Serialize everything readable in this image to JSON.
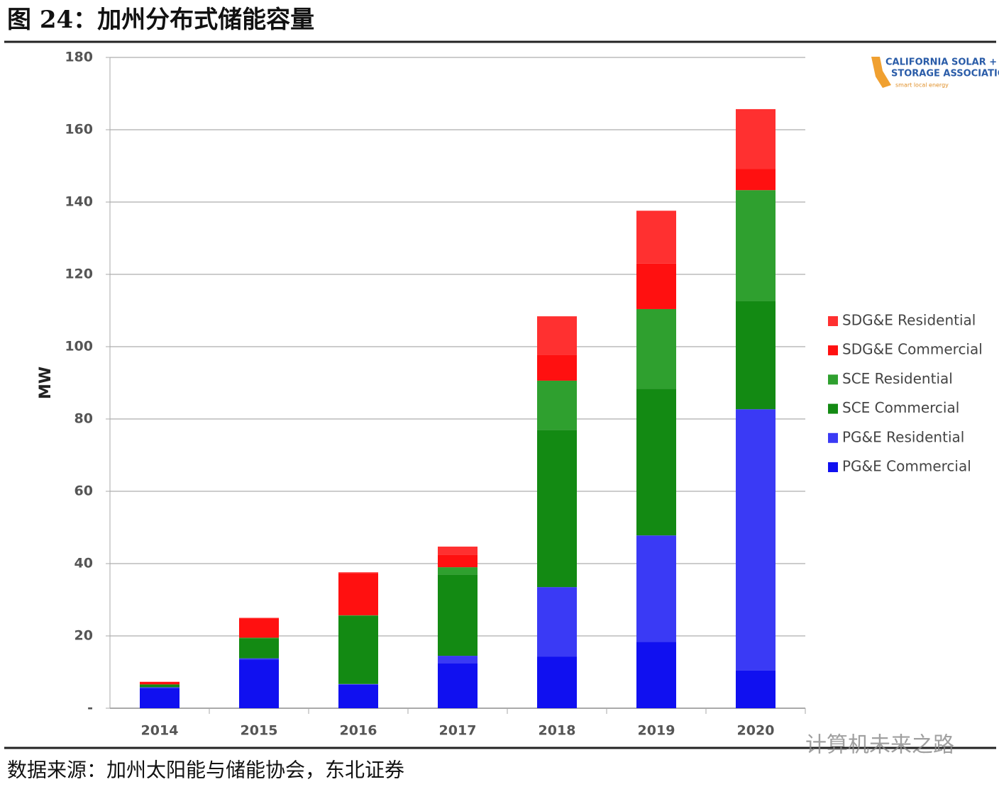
{
  "chart_data": {
    "type": "stacked_bar",
    "title": "图 24：加州分布式储能容量",
    "source": "数据来源：加州太阳能与储能协会，东北证券",
    "watermark": "计算机未来之路",
    "logo": {
      "line1": "CALIFORNIA SOLAR +",
      "line2": "STORAGE ASSOCIATION",
      "tagline": "smart local energy"
    },
    "y_label": "MW",
    "categories": [
      "2014",
      "2015",
      "2016",
      "2017",
      "2018",
      "2019",
      "2020"
    ],
    "series": [
      {
        "name": "PG&E Commercial",
        "color": "#1010f0",
        "values": [
          5.5,
          13.5,
          6.5,
          12.5,
          14.3,
          18.4,
          10.4
        ]
      },
      {
        "name": "PG&E Residential",
        "color": "#3a3af5",
        "values": [
          0.3,
          0.3,
          0.2,
          2,
          19.2,
          29.4,
          72.3
        ]
      },
      {
        "name": "SCE Commercial",
        "color": "#138a13",
        "values": [
          0.8,
          5.5,
          18.8,
          22.5,
          43.5,
          40.6,
          30
        ]
      },
      {
        "name": "SCE Residential",
        "color": "#2fa02f",
        "values": [
          0,
          0.2,
          0.2,
          2,
          13.6,
          22,
          30.6
        ]
      },
      {
        "name": "SDG&E Commercial",
        "color": "#ff1010",
        "values": [
          0.7,
          5.3,
          11.7,
          3.5,
          7.2,
          12.6,
          5.9
        ]
      },
      {
        "name": "SDG&E Residential",
        "color": "#ff3030",
        "values": [
          0,
          0.2,
          0.2,
          2.2,
          10.6,
          14.6,
          16.5
        ]
      }
    ],
    "ylim": [
      0,
      180
    ],
    "yticks": [
      {
        "value": 0,
        "label": "-"
      },
      20,
      40,
      60,
      80,
      100,
      120,
      140,
      160,
      180
    ],
    "grid": true,
    "legend_position": "right"
  }
}
